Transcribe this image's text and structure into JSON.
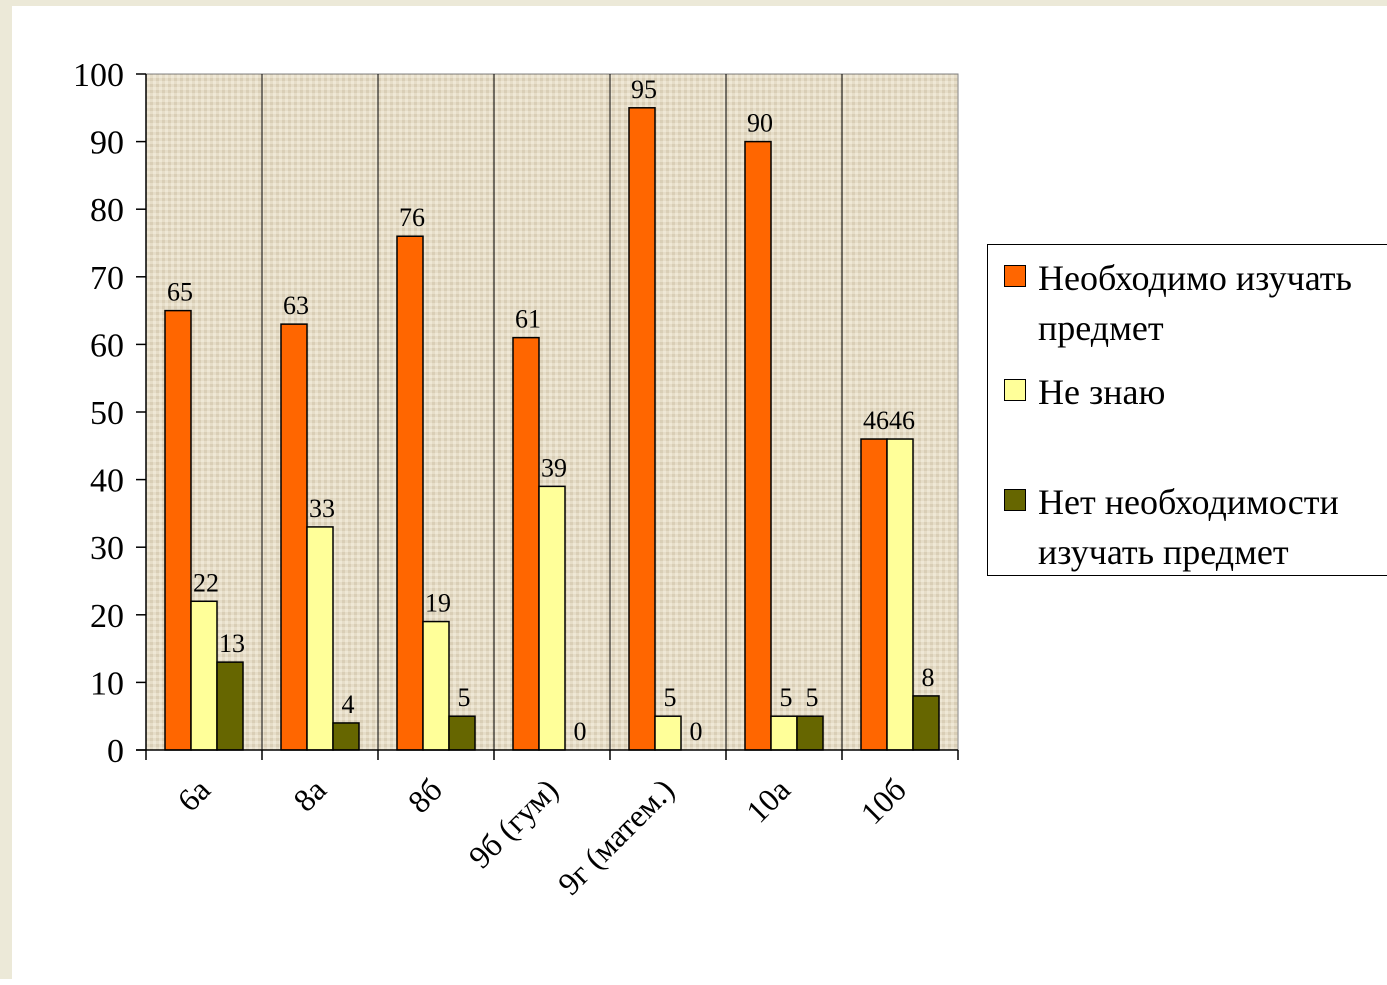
{
  "chart_data": {
    "type": "bar",
    "categories": [
      "6а",
      "8а",
      "8б",
      "9б (гум)",
      "9г (матем.)",
      "10а",
      "10б"
    ],
    "series": [
      {
        "name": "Необходимо изучать предмет",
        "values": [
          65,
          63,
          76,
          61,
          95,
          90,
          46
        ],
        "color": "#ff6600"
      },
      {
        "name": "Не знаю",
        "values": [
          22,
          33,
          19,
          39,
          5,
          5,
          46
        ],
        "color": "#ffff99"
      },
      {
        "name": "Нет необходимости изучать предмет",
        "values": [
          13,
          4,
          5,
          0,
          0,
          5,
          8
        ],
        "color": "#666600"
      }
    ],
    "data_labels": [
      [
        "65",
        "22",
        "13"
      ],
      [
        "63",
        "33",
        "4"
      ],
      [
        "76",
        "19",
        "5"
      ],
      [
        "61",
        "39",
        "0"
      ],
      [
        "95",
        "5",
        "0"
      ],
      [
        "90",
        "5",
        "5"
      ],
      [
        "46",
        "46",
        "8"
      ]
    ],
    "ylim": [
      0,
      100
    ],
    "yticks": [
      "0",
      "10",
      "20",
      "30",
      "40",
      "50",
      "60",
      "70",
      "80",
      "90",
      "100"
    ],
    "grid": "vertical lines between categories",
    "plot_background": "beige textured",
    "legend_position": "right"
  }
}
